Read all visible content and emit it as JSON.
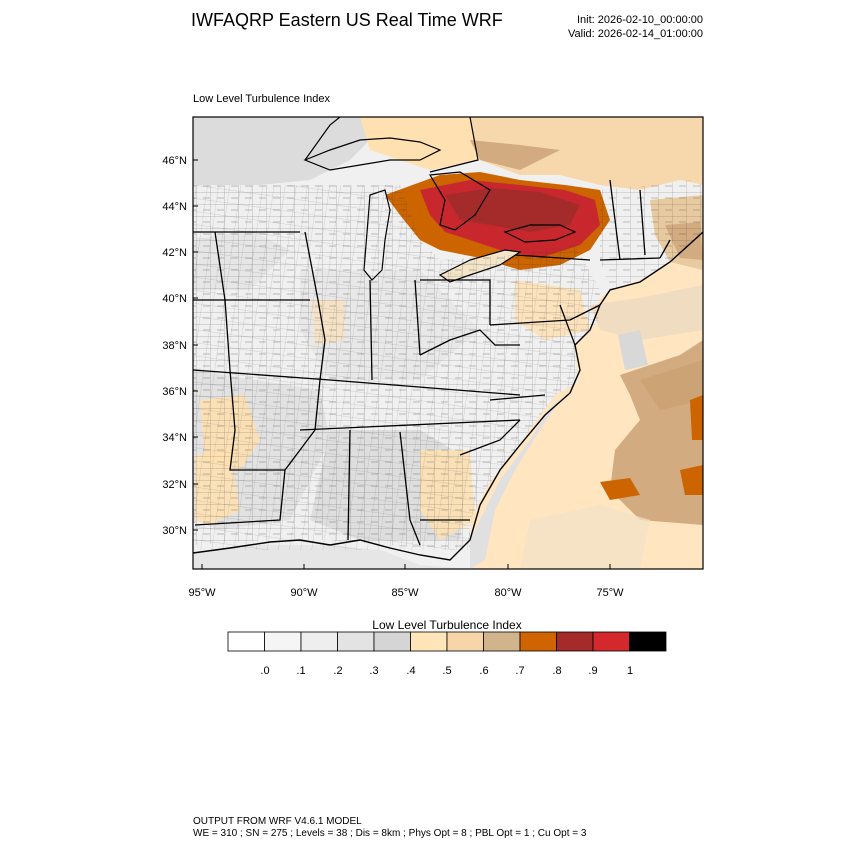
{
  "header": {
    "title": "IWFAQRP Eastern US Real Time WRF",
    "init": "Init: 2026-02-10_00:00:00",
    "valid": "Valid: 2026-02-14_01:00:00"
  },
  "map": {
    "field_name": "Low Level Turbulence Index",
    "lat_ticks": [
      "46°N",
      "44°N",
      "42°N",
      "40°N",
      "38°N",
      "36°N",
      "34°N",
      "32°N",
      "30°N"
    ],
    "lon_ticks": [
      "95°W",
      "90°W",
      "85°W",
      "80°W",
      "75°W"
    ],
    "colors": {
      "land_low": "#f2f2f2",
      "land_mid": "#e2e2e2",
      "water_gray": "#d5d5d5",
      "ocean_light": "#ffe5c0",
      "ocean_mid": "#d3ab80",
      "hotspot_orange": "#cc6400",
      "hotspot_red": "#c8282d",
      "hotspot_dark": "#a52a2a"
    }
  },
  "colorbar": {
    "title": "Low Level Turbulence Index",
    "colors": [
      "#ffffff",
      "#f5f5f5",
      "#eeeeee",
      "#e3e3e3",
      "#d5d5d5",
      "#ffe5b8",
      "#f8d5a8",
      "#d2b48c",
      "#d06400",
      "#a52a2a",
      "#d5282d",
      "#000000"
    ],
    "labels": [
      ".0",
      ".1",
      ".2",
      ".3",
      ".4",
      ".5",
      ".6",
      ".7",
      ".8",
      ".9",
      "1"
    ]
  },
  "footer": {
    "line1": "OUTPUT FROM WRF V4.6.1 MODEL",
    "line2": "WE = 310 ; SN = 275 ; Levels = 38 ; Dis = 8km ; Phys Opt = 8 ; PBL Opt = 1 ; Cu Opt = 3"
  }
}
